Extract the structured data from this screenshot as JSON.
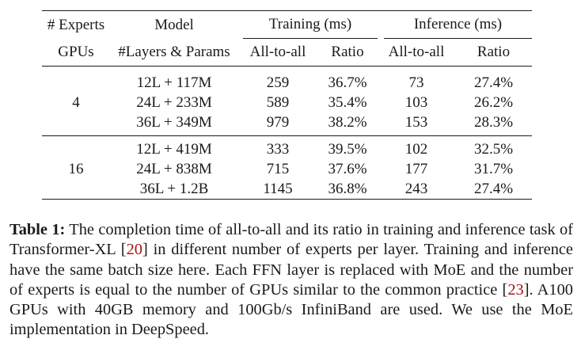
{
  "table": {
    "header1": {
      "experts": "# Experts",
      "model": "Model",
      "training": "Training (ms)",
      "inference": "Inference (ms)"
    },
    "header2": {
      "gpus": "GPUs",
      "layers_params": "#Layers & Params",
      "train_a2a": "All-to-all",
      "train_ratio": "Ratio",
      "inf_a2a": "All-to-all",
      "inf_ratio": "Ratio"
    },
    "groups": [
      {
        "gpus": "4",
        "rows": [
          {
            "model": "12L + 117M",
            "train_a2a": "259",
            "train_ratio": "36.7%",
            "inf_a2a": "73",
            "inf_ratio": "27.4%"
          },
          {
            "model": "24L + 233M",
            "train_a2a": "589",
            "train_ratio": "35.4%",
            "inf_a2a": "103",
            "inf_ratio": "26.2%"
          },
          {
            "model": "36L + 349M",
            "train_a2a": "979",
            "train_ratio": "38.2%",
            "inf_a2a": "153",
            "inf_ratio": "28.3%"
          }
        ]
      },
      {
        "gpus": "16",
        "rows": [
          {
            "model": "12L + 419M",
            "train_a2a": "333",
            "train_ratio": "39.5%",
            "inf_a2a": "102",
            "inf_ratio": "32.5%"
          },
          {
            "model": "24L + 838M",
            "train_a2a": "715",
            "train_ratio": "37.6%",
            "inf_a2a": "177",
            "inf_ratio": "31.7%"
          },
          {
            "model": "36L + 1.2B",
            "train_a2a": "1145",
            "train_ratio": "36.8%",
            "inf_a2a": "243",
            "inf_ratio": "27.4%"
          }
        ]
      }
    ]
  },
  "caption": {
    "label": "Table 1:",
    "text1": " The completion time of all-to-all and its ratio in training and inference task of Transformer-XL [",
    "cite1": "20",
    "text2": "] in different number of experts per layer. Training and inference have the same batch size here. Each FFN layer is replaced with MoE and the number of experts is equal to the number of GPUs similar to the common practice [",
    "cite2": "23",
    "text3": "]. A100 GPUs with 40GB memory and 100Gb/s InfiniBand are used. We use the MoE implementation in DeepSpeed."
  },
  "colors": {
    "text": "#1a1a1a",
    "citation": "#a31515"
  }
}
